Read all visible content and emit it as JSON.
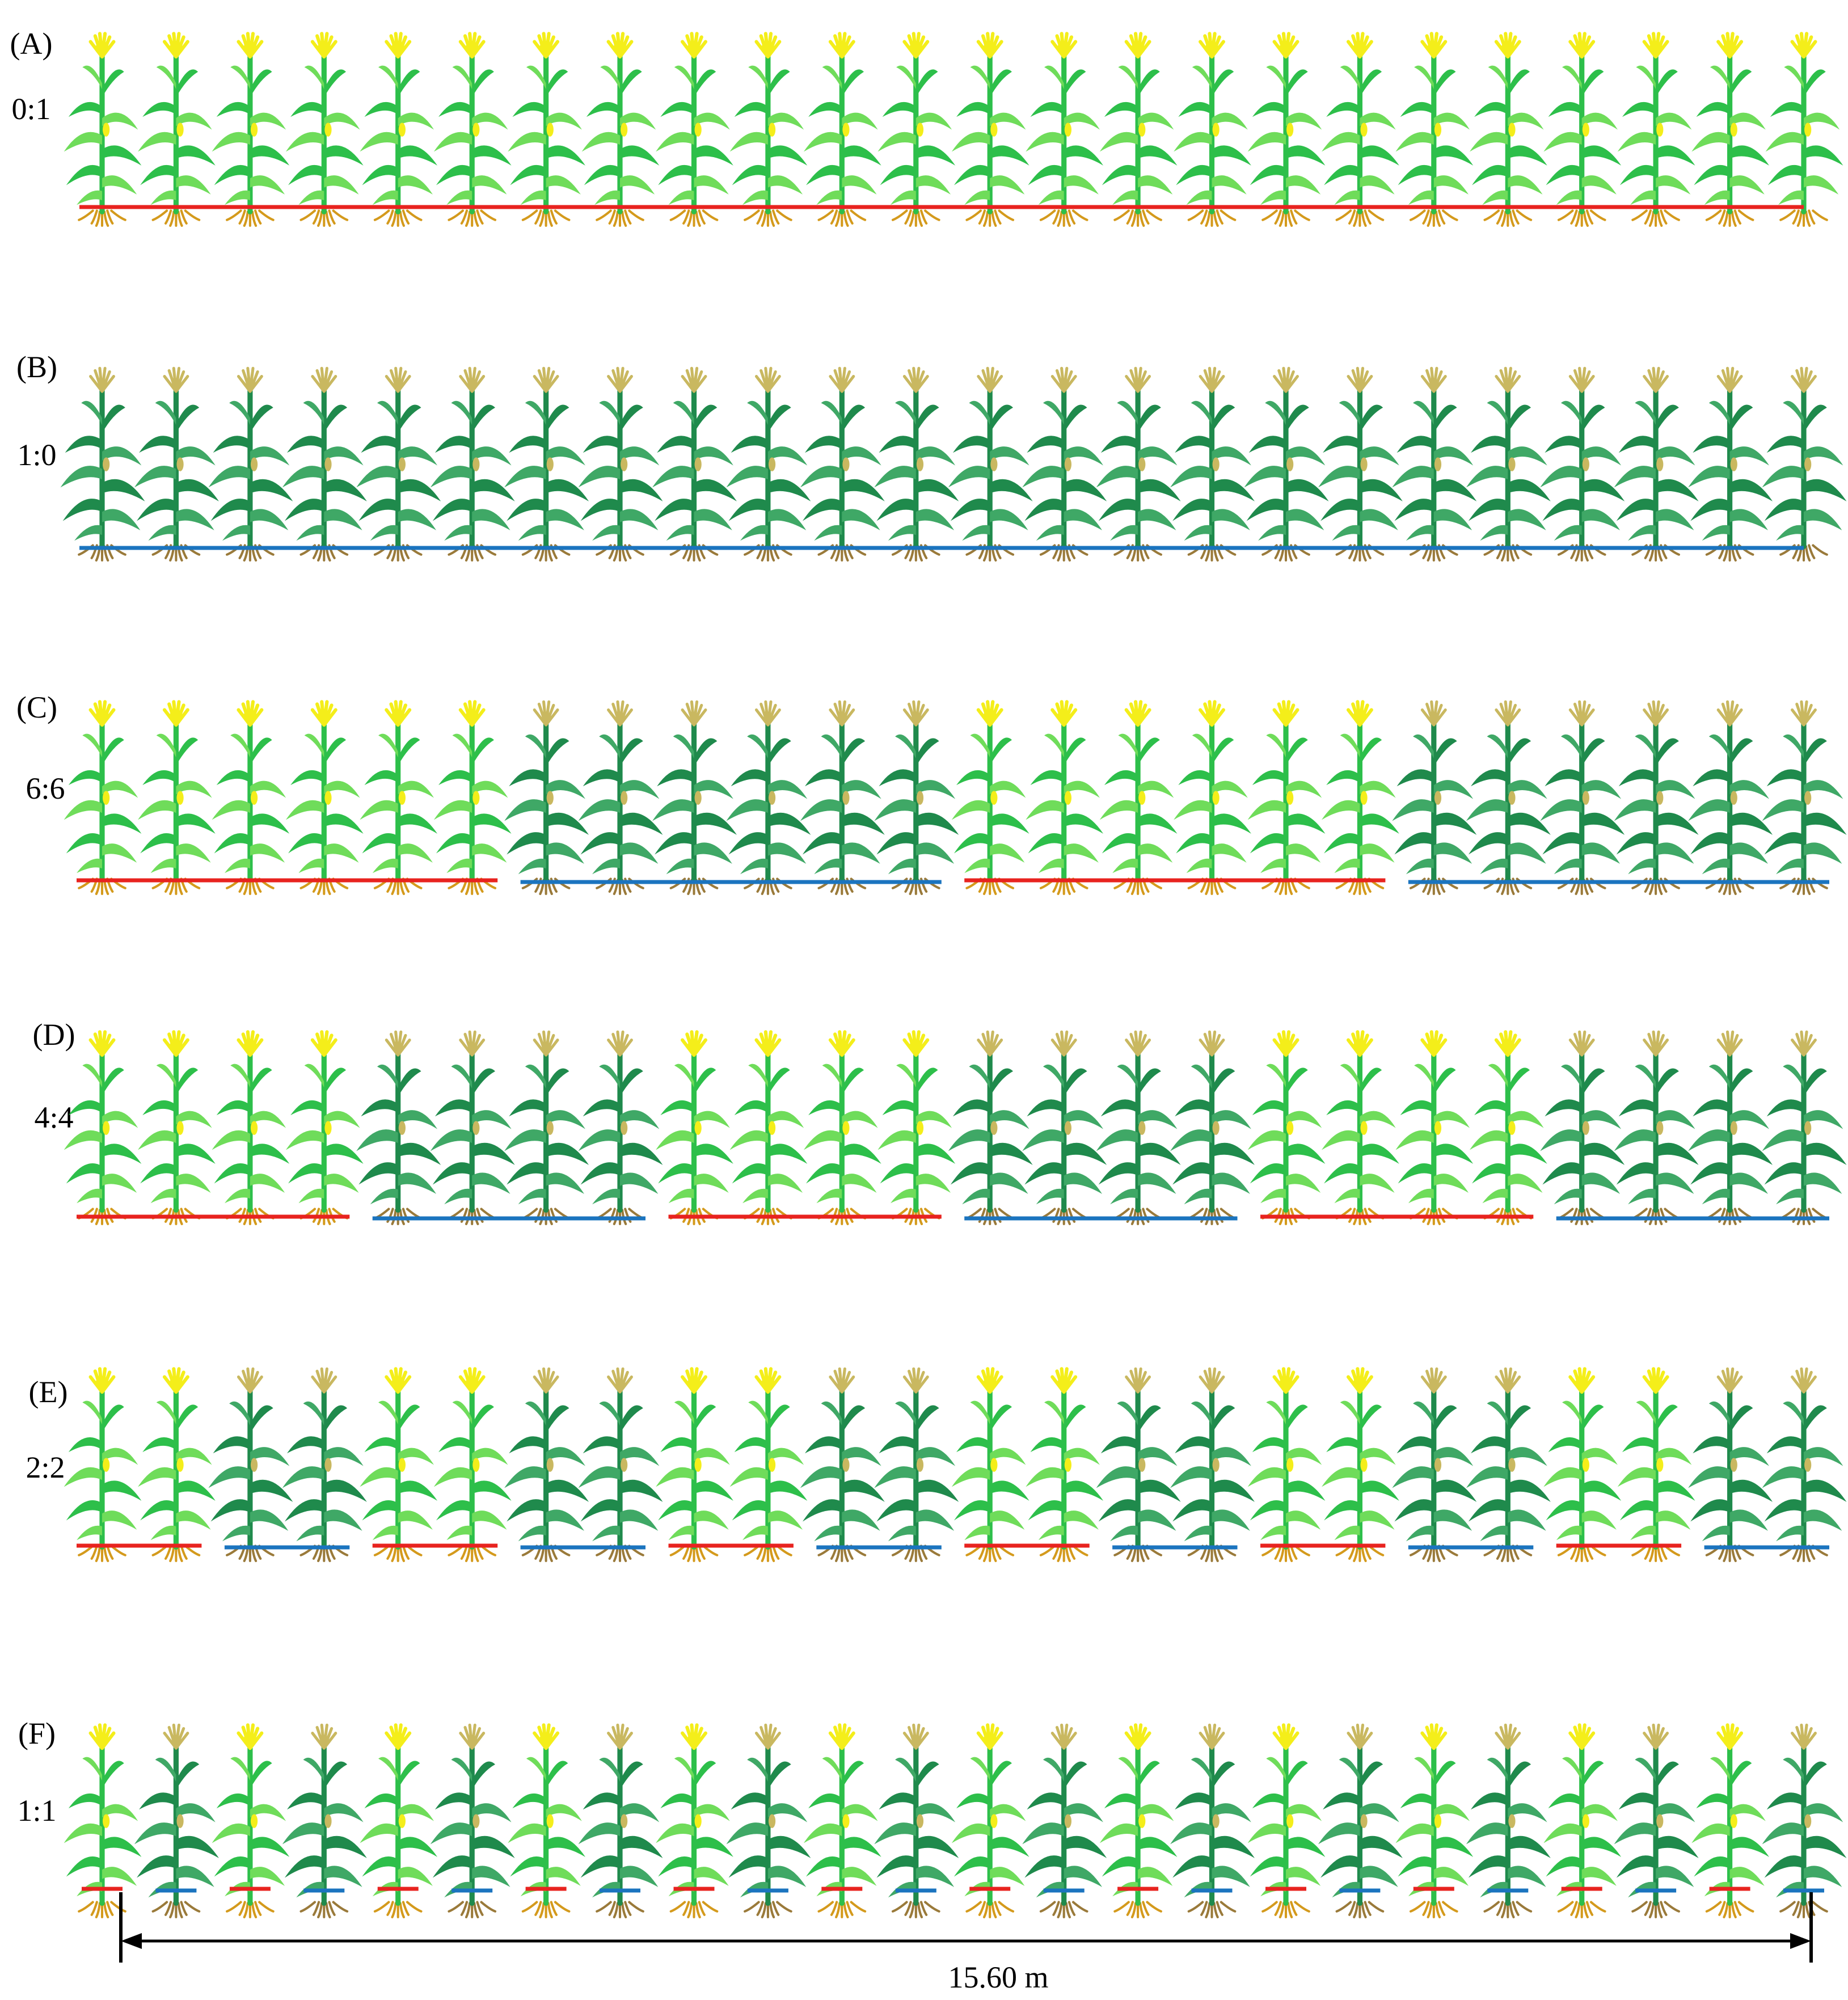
{
  "colors": {
    "variety_1_leaf": "#2dbf4a",
    "variety_1_leaf_light": "#6fdc5a",
    "variety_1_tassel": "#f4ee1a",
    "variety_1_root": "#d49a1c",
    "variety_2_leaf": "#1f8a4c",
    "variety_2_leaf_light": "#3fa866",
    "variety_2_tassel": "#c9b860",
    "variety_2_root": "#9a7a3a",
    "line_red": "#e8231f",
    "line_blue": "#1b74bf",
    "scale": "#000000"
  },
  "panels": [
    {
      "id": "A",
      "letter": "(A)",
      "ratio": "0:1",
      "plants": "111111111111111111111111",
      "lines": [
        "r"
      ]
    },
    {
      "id": "B",
      "letter": "(B)",
      "ratio": "1:0",
      "plants": "222222222222222222222222",
      "lines": [
        "b"
      ]
    },
    {
      "id": "C",
      "letter": "(C)",
      "ratio": "6:6",
      "plants": "111111222222111111222222",
      "lines": [
        "r",
        "b",
        "r",
        "b"
      ]
    },
    {
      "id": "D",
      "letter": "(D)",
      "ratio": "4:4",
      "plants": "111122221111222211112222",
      "lines": [
        "r",
        "b",
        "r",
        "b",
        "r",
        "b"
      ]
    },
    {
      "id": "E",
      "letter": "(E)",
      "ratio": "2:2",
      "plants": "112211221122112211221122",
      "lines": [
        "r",
        "b",
        "r",
        "b",
        "r",
        "b",
        "r",
        "b",
        "r",
        "b",
        "r",
        "b"
      ]
    },
    {
      "id": "F",
      "letter": "(F)",
      "ratio": "1:1",
      "plants": "121212121212121212121212",
      "lines": [
        "r",
        "b",
        "r",
        "b",
        "r",
        "b",
        "r",
        "b",
        "r",
        "b",
        "r",
        "b",
        "r",
        "b",
        "r",
        "b",
        "r",
        "b",
        "r",
        "b",
        "r",
        "b",
        "r",
        "b"
      ]
    }
  ],
  "scale_bar": {
    "label": "15.60 m"
  }
}
